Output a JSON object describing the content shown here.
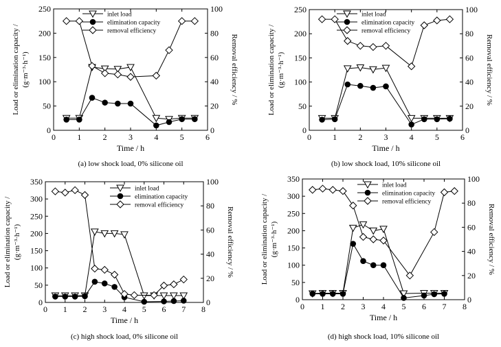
{
  "legend_labels": [
    "inlet load",
    "elimination capacity",
    "removal efficiency"
  ],
  "y_label_left_line1": "Load or elimination capacity /",
  "y_label_left_line2": "(g·m⁻³·h⁻¹)",
  "y_label_right": "Removal efficiency / %",
  "chart_data": [
    {
      "type": "line",
      "caption": "(a) low shock load, 0% silicone oil",
      "xlabel": "Time / h",
      "xlim": [
        0,
        6
      ],
      "xticks": [
        0,
        1,
        2,
        3,
        4,
        5,
        6
      ],
      "ylim_left": [
        0,
        250
      ],
      "yticks_left": [
        0,
        50,
        100,
        150,
        200,
        250
      ],
      "ylim_right": [
        0,
        100
      ],
      "yticks_right": [
        0,
        20,
        40,
        60,
        80,
        100
      ],
      "series": [
        {
          "name": "inlet load",
          "axis": "left",
          "marker": "triangle-down",
          "x": [
            0.5,
            1,
            1.5,
            2,
            2.5,
            3,
            4,
            4.5,
            5,
            5.5
          ],
          "y": [
            25,
            25,
            130,
            127,
            126,
            130,
            25,
            23,
            25,
            25
          ]
        },
        {
          "name": "elimination capacity",
          "axis": "left",
          "marker": "circle-filled",
          "x": [
            0.5,
            1,
            1.5,
            2,
            2.5,
            3,
            4,
            4.5,
            5,
            5.5
          ],
          "y": [
            22,
            22,
            67,
            57,
            55,
            55,
            10,
            17,
            23,
            23
          ]
        },
        {
          "name": "removal efficiency",
          "axis": "right",
          "marker": "diamond",
          "x": [
            0.5,
            1,
            1.5,
            2,
            2.5,
            3,
            4,
            4.5,
            5,
            5.5
          ],
          "y": [
            90,
            90,
            53,
            47,
            46,
            44,
            45,
            66,
            90,
            90
          ]
        }
      ]
    },
    {
      "type": "line",
      "caption": "(b) low shock load, 10% silicone oil",
      "xlabel": "Time / h",
      "xlim": [
        0,
        6
      ],
      "xticks": [
        0,
        1,
        2,
        3,
        4,
        5,
        6
      ],
      "ylim_left": [
        0,
        250
      ],
      "yticks_left": [
        0,
        50,
        100,
        150,
        200,
        250
      ],
      "ylim_right": [
        0,
        100
      ],
      "yticks_right": [
        0,
        20,
        40,
        60,
        80,
        100
      ],
      "series": [
        {
          "name": "inlet load",
          "axis": "left",
          "marker": "triangle-down",
          "x": [
            0.5,
            1,
            1.5,
            2,
            2.5,
            3,
            4,
            4.5,
            5,
            5.5
          ],
          "y": [
            25,
            25,
            128,
            130,
            126,
            129,
            25,
            25,
            25,
            25
          ]
        },
        {
          "name": "elimination capacity",
          "axis": "left",
          "marker": "circle-filled",
          "x": [
            0.5,
            1,
            1.5,
            2,
            2.5,
            3,
            4,
            4.5,
            5,
            5.5
          ],
          "y": [
            22,
            23,
            95,
            92,
            88,
            91,
            12,
            23,
            23,
            24
          ]
        },
        {
          "name": "removal efficiency",
          "axis": "right",
          "marker": "diamond",
          "x": [
            0.5,
            1,
            1.5,
            2,
            2.5,
            3,
            4,
            4.5,
            5,
            5.5
          ],
          "y": [
            92,
            92,
            74,
            70,
            69,
            70,
            53,
            87,
            91,
            92
          ]
        }
      ]
    },
    {
      "type": "line",
      "caption": "(c) high shock load, 0% silicone oil",
      "xlabel": "Time / h",
      "xlim": [
        0,
        8
      ],
      "xticks": [
        0,
        1,
        2,
        3,
        4,
        5,
        6,
        7,
        8
      ],
      "ylim_left": [
        0,
        350
      ],
      "yticks_left": [
        0,
        50,
        100,
        150,
        200,
        250,
        300,
        350
      ],
      "ylim_right": [
        0,
        100
      ],
      "yticks_right": [
        0,
        20,
        40,
        60,
        80,
        100
      ],
      "series": [
        {
          "name": "inlet load",
          "axis": "left",
          "marker": "triangle-down",
          "x": [
            0.5,
            1,
            1.5,
            2,
            2.5,
            3,
            3.5,
            4,
            5,
            5.5,
            6,
            6.5,
            7
          ],
          "y": [
            20,
            20,
            20,
            20,
            205,
            200,
            200,
            197,
            20,
            20,
            20,
            20,
            20
          ]
        },
        {
          "name": "elimination capacity",
          "axis": "left",
          "marker": "circle-filled",
          "x": [
            0.5,
            1,
            1.5,
            2,
            2.5,
            3,
            3.5,
            4,
            5,
            6,
            6.5,
            7
          ],
          "y": [
            17,
            17,
            17,
            18,
            60,
            55,
            45,
            15,
            2,
            3,
            4,
            5
          ]
        },
        {
          "name": "removal efficiency",
          "axis": "right",
          "marker": "diamond",
          "x": [
            0.5,
            1,
            1.5,
            2,
            2.5,
            3,
            3.5,
            4,
            4.5,
            5.5,
            6,
            6.5,
            7
          ],
          "y": [
            92,
            91,
            93,
            89,
            28,
            27,
            23,
            7,
            6,
            6,
            14,
            15,
            19
          ]
        }
      ]
    },
    {
      "type": "line",
      "caption": "(d) high shock load, 10% silicone oil",
      "xlabel": "Time / h",
      "xlim": [
        0,
        8
      ],
      "xticks": [
        0,
        1,
        2,
        3,
        4,
        5,
        6,
        7,
        8
      ],
      "ylim_left": [
        0,
        350
      ],
      "yticks_left": [
        0,
        50,
        100,
        150,
        200,
        250,
        300,
        350
      ],
      "ylim_right": [
        0,
        100
      ],
      "yticks_right": [
        0,
        20,
        40,
        60,
        80,
        100
      ],
      "series": [
        {
          "name": "inlet load",
          "axis": "left",
          "marker": "triangle-down",
          "x": [
            0.5,
            1,
            1.5,
            2,
            2.5,
            3,
            3.5,
            4,
            5,
            6,
            6.5,
            7
          ],
          "y": [
            18,
            19,
            19,
            19,
            208,
            218,
            200,
            205,
            18,
            19,
            19,
            19
          ]
        },
        {
          "name": "elimination capacity",
          "axis": "left",
          "marker": "circle-filled",
          "x": [
            0.5,
            1,
            1.5,
            2,
            2.5,
            3,
            3.5,
            4,
            5,
            6,
            6.5,
            7
          ],
          "y": [
            17,
            17,
            17,
            17,
            162,
            112,
            100,
            100,
            5,
            12,
            16,
            17
          ]
        },
        {
          "name": "removal efficiency",
          "axis": "right",
          "marker": "diamond",
          "x": [
            0.5,
            1,
            1.5,
            2,
            2.5,
            3,
            3.5,
            4,
            5.3,
            6.5,
            7,
            7.5
          ],
          "y": [
            91,
            92,
            91,
            90,
            78,
            52,
            50,
            49,
            20,
            56,
            89,
            90
          ]
        }
      ]
    }
  ]
}
